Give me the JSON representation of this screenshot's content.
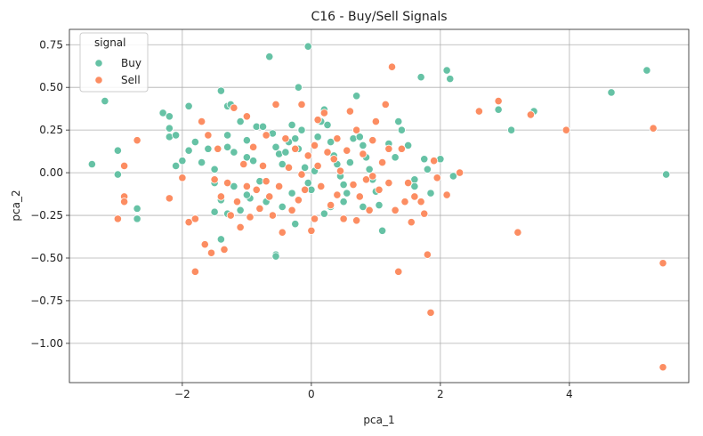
{
  "chart_data": {
    "type": "scatter",
    "title": "C16 - Buy/Sell Signals",
    "xlabel": "pca_1",
    "ylabel": "pca_2",
    "xlim": [
      -3.75,
      5.85
    ],
    "ylim": [
      -1.23,
      0.84
    ],
    "x_ticks": [
      -2,
      0,
      2,
      4
    ],
    "x_tick_labels": [
      "−2",
      "0",
      "2",
      "4"
    ],
    "y_ticks": [
      0.75,
      0.5,
      0.25,
      0.0,
      -0.25,
      -0.5,
      -0.75,
      -1.0
    ],
    "y_tick_labels": [
      "0.75",
      "0.50",
      "0.25",
      "0.00",
      "−0.25",
      "−0.50",
      "−0.75",
      "−1.00"
    ],
    "grid": true,
    "legend": {
      "title": "signal",
      "position": "top-left"
    },
    "series": [
      {
        "name": "Buy",
        "color": "#66c2a5",
        "points": [
          [
            -3.2,
            0.42
          ],
          [
            -3.4,
            0.05
          ],
          [
            -3.0,
            0.13
          ],
          [
            -3.0,
            -0.01
          ],
          [
            -2.7,
            -0.21
          ],
          [
            -2.7,
            -0.27
          ],
          [
            -2.3,
            0.35
          ],
          [
            -2.2,
            0.33
          ],
          [
            -2.2,
            0.26
          ],
          [
            -2.2,
            0.21
          ],
          [
            -2.1,
            0.22
          ],
          [
            -2.1,
            0.04
          ],
          [
            -2.0,
            0.07
          ],
          [
            -1.9,
            0.39
          ],
          [
            -1.9,
            0.13
          ],
          [
            -1.8,
            0.18
          ],
          [
            -1.7,
            0.06
          ],
          [
            -1.6,
            0.14
          ],
          [
            -1.5,
            0.02
          ],
          [
            -1.5,
            -0.06
          ],
          [
            -1.4,
            0.48
          ],
          [
            -1.3,
            0.39
          ],
          [
            -1.25,
            0.4
          ],
          [
            -1.3,
            0.22
          ],
          [
            -1.3,
            0.15
          ],
          [
            -1.2,
            0.12
          ],
          [
            -1.2,
            -0.08
          ],
          [
            -1.4,
            -0.16
          ],
          [
            -1.3,
            -0.24
          ],
          [
            -1.4,
            -0.39
          ],
          [
            -1.5,
            -0.23
          ],
          [
            -1.1,
            0.3
          ],
          [
            -1.0,
            0.19
          ],
          [
            -1.0,
            0.09
          ],
          [
            -0.9,
            0.07
          ],
          [
            -0.85,
            0.27
          ],
          [
            -0.75,
            0.27
          ],
          [
            -0.65,
            0.68
          ],
          [
            -0.6,
            0.23
          ],
          [
            -0.55,
            0.15
          ],
          [
            -0.5,
            0.11
          ],
          [
            -0.45,
            0.05
          ],
          [
            -0.4,
            0.12
          ],
          [
            -0.35,
            0.18
          ],
          [
            -0.3,
            0.28
          ],
          [
            -0.25,
            0.2
          ],
          [
            -0.2,
            0.14
          ],
          [
            -0.15,
            0.25
          ],
          [
            -0.1,
            0.03
          ],
          [
            -0.05,
            -0.06
          ],
          [
            0.0,
            -0.1
          ],
          [
            0.05,
            0.01
          ],
          [
            0.1,
            0.21
          ],
          [
            0.15,
            0.3
          ],
          [
            0.2,
            0.37
          ],
          [
            0.25,
            0.28
          ],
          [
            0.3,
            0.18
          ],
          [
            0.35,
            0.1
          ],
          [
            0.4,
            0.05
          ],
          [
            0.45,
            -0.02
          ],
          [
            0.5,
            -0.07
          ],
          [
            0.55,
            -0.12
          ],
          [
            0.6,
            0.06
          ],
          [
            0.65,
            0.2
          ],
          [
            0.7,
            0.45
          ],
          [
            0.75,
            0.21
          ],
          [
            0.8,
            0.16
          ],
          [
            0.85,
            0.09
          ],
          [
            0.9,
            0.02
          ],
          [
            0.95,
            -0.04
          ],
          [
            1.0,
            -0.11
          ],
          [
            1.05,
            -0.19
          ],
          [
            1.1,
            -0.34
          ],
          [
            1.2,
            0.17
          ],
          [
            1.3,
            0.09
          ],
          [
            1.35,
            0.3
          ],
          [
            1.4,
            0.25
          ],
          [
            1.5,
            0.16
          ],
          [
            1.6,
            -0.04
          ],
          [
            1.7,
            0.56
          ],
          [
            1.75,
            0.08
          ],
          [
            1.8,
            0.02
          ],
          [
            1.85,
            -0.12
          ],
          [
            1.9,
            0.07
          ],
          [
            2.0,
            0.08
          ],
          [
            2.1,
            0.6
          ],
          [
            2.15,
            0.55
          ],
          [
            2.2,
            -0.02
          ],
          [
            -0.2,
            0.5
          ],
          [
            -0.05,
            0.74
          ],
          [
            -0.55,
            -0.48
          ],
          [
            -0.55,
            -0.49
          ],
          [
            -0.45,
            -0.2
          ],
          [
            -0.7,
            -0.17
          ],
          [
            -0.8,
            -0.05
          ],
          [
            -0.95,
            -0.15
          ],
          [
            -1.1,
            -0.22
          ],
          [
            -1.0,
            -0.13
          ],
          [
            -0.3,
            -0.12
          ],
          [
            -0.25,
            -0.3
          ],
          [
            0.2,
            -0.24
          ],
          [
            0.3,
            -0.2
          ],
          [
            0.5,
            -0.17
          ],
          [
            0.8,
            -0.2
          ],
          [
            1.6,
            -0.08
          ],
          [
            2.9,
            0.37
          ],
          [
            3.1,
            0.25
          ],
          [
            3.45,
            0.36
          ],
          [
            4.65,
            0.47
          ],
          [
            5.2,
            0.6
          ],
          [
            5.5,
            -0.01
          ]
        ]
      },
      {
        "name": "Sell",
        "color": "#fc8d62",
        "points": [
          [
            -2.7,
            0.19
          ],
          [
            -2.9,
            0.04
          ],
          [
            -2.9,
            -0.14
          ],
          [
            -2.9,
            -0.17
          ],
          [
            -3.0,
            -0.27
          ],
          [
            -2.2,
            -0.15
          ],
          [
            -2.0,
            -0.03
          ],
          [
            -1.9,
            -0.29
          ],
          [
            -1.8,
            -0.27
          ],
          [
            -1.8,
            -0.58
          ],
          [
            -1.7,
            0.3
          ],
          [
            -1.65,
            -0.42
          ],
          [
            -1.6,
            0.22
          ],
          [
            -1.55,
            -0.47
          ],
          [
            -1.5,
            -0.04
          ],
          [
            -1.45,
            0.14
          ],
          [
            -1.4,
            -0.14
          ],
          [
            -1.35,
            -0.45
          ],
          [
            -1.3,
            -0.06
          ],
          [
            -1.25,
            -0.25
          ],
          [
            -1.2,
            0.38
          ],
          [
            -1.15,
            -0.17
          ],
          [
            -1.1,
            -0.32
          ],
          [
            -1.0,
            0.33
          ],
          [
            -1.0,
            -0.08
          ],
          [
            -0.95,
            -0.26
          ],
          [
            -0.9,
            0.15
          ],
          [
            -0.85,
            -0.1
          ],
          [
            -0.8,
            -0.21
          ],
          [
            -0.75,
            0.04
          ],
          [
            -0.7,
            -0.05
          ],
          [
            -0.65,
            -0.14
          ],
          [
            -0.6,
            -0.25
          ],
          [
            -0.55,
            0.4
          ],
          [
            -0.5,
            -0.08
          ],
          [
            -0.45,
            -0.35
          ],
          [
            -0.4,
            0.2
          ],
          [
            -0.35,
            0.03
          ],
          [
            -0.3,
            -0.22
          ],
          [
            -0.25,
            0.14
          ],
          [
            -0.2,
            -0.16
          ],
          [
            -0.15,
            -0.01
          ],
          [
            -0.1,
            -0.1
          ],
          [
            -0.05,
            0.1
          ],
          [
            0.0,
            -0.34
          ],
          [
            0.05,
            -0.27
          ],
          [
            0.1,
            0.04
          ],
          [
            0.15,
            -0.08
          ],
          [
            0.2,
            0.35
          ],
          [
            0.25,
            0.12
          ],
          [
            0.3,
            -0.19
          ],
          [
            0.35,
            0.08
          ],
          [
            0.4,
            -0.13
          ],
          [
            0.45,
            0.01
          ],
          [
            0.5,
            -0.27
          ],
          [
            0.55,
            0.13
          ],
          [
            0.6,
            0.36
          ],
          [
            0.65,
            -0.07
          ],
          [
            0.7,
            0.25
          ],
          [
            0.75,
            -0.14
          ],
          [
            0.8,
            0.11
          ],
          [
            0.85,
            -0.04
          ],
          [
            0.9,
            -0.22
          ],
          [
            0.95,
            0.19
          ],
          [
            1.0,
            0.3
          ],
          [
            1.05,
            -0.1
          ],
          [
            1.1,
            0.06
          ],
          [
            1.15,
            0.4
          ],
          [
            1.2,
            -0.06
          ],
          [
            1.25,
            0.62
          ],
          [
            1.3,
            -0.22
          ],
          [
            1.35,
            -0.58
          ],
          [
            1.4,
            0.14
          ],
          [
            1.45,
            -0.17
          ],
          [
            1.5,
            -0.06
          ],
          [
            1.55,
            -0.29
          ],
          [
            1.6,
            -0.14
          ],
          [
            1.7,
            -0.17
          ],
          [
            1.75,
            -0.24
          ],
          [
            1.8,
            -0.48
          ],
          [
            1.85,
            -0.82
          ],
          [
            1.9,
            0.07
          ],
          [
            1.95,
            -0.03
          ],
          [
            2.1,
            -0.13
          ],
          [
            2.3,
            0.0
          ],
          [
            2.6,
            0.36
          ],
          [
            2.9,
            0.42
          ],
          [
            3.2,
            -0.35
          ],
          [
            3.4,
            0.34
          ],
          [
            3.95,
            0.25
          ],
          [
            5.3,
            0.26
          ],
          [
            5.45,
            -0.53
          ],
          [
            5.45,
            -1.14
          ],
          [
            -0.15,
            0.4
          ],
          [
            0.1,
            0.31
          ],
          [
            0.4,
            0.2
          ],
          [
            -0.7,
            0.22
          ],
          [
            -1.05,
            0.05
          ],
          [
            0.7,
            -0.28
          ],
          [
            0.95,
            -0.02
          ],
          [
            1.2,
            0.14
          ],
          [
            0.05,
            0.16
          ]
        ]
      }
    ]
  }
}
